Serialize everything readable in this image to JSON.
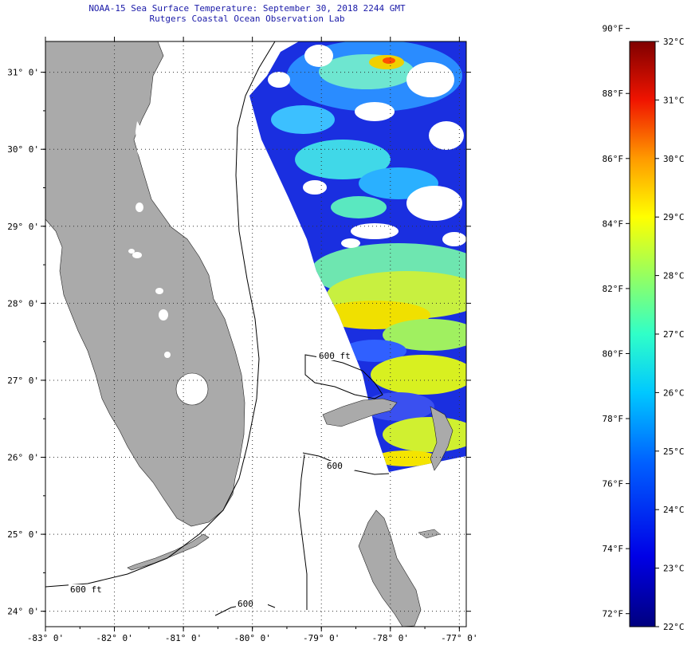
{
  "header": {
    "title_line1": "NOAA-15 Sea Surface Temperature:  September 30, 2018 2244 GMT",
    "title_line2": "Rutgers Coastal Ocean Observation Lab"
  },
  "map": {
    "lon_ticks": [
      {
        "label": "-83° 0'",
        "value": -83
      },
      {
        "label": "-82° 0'",
        "value": -82
      },
      {
        "label": "-81° 0'",
        "value": -81
      },
      {
        "label": "-80° 0'",
        "value": -80
      },
      {
        "label": "-79° 0'",
        "value": -79
      },
      {
        "label": "-78° 0'",
        "value": -78
      },
      {
        "label": "-77° 0'",
        "value": -77
      }
    ],
    "lat_ticks": [
      {
        "label": "31° 0'",
        "value": 31
      },
      {
        "label": "30° 0'",
        "value": 30
      },
      {
        "label": "29° 0'",
        "value": 29
      },
      {
        "label": "28° 0'",
        "value": 28
      },
      {
        "label": "27° 0'",
        "value": 27
      },
      {
        "label": "26° 0'",
        "value": 26
      },
      {
        "label": "25° 0'",
        "value": 25
      },
      {
        "label": "24° 0'",
        "value": 24
      }
    ],
    "lon_range": [
      -83,
      -76.9
    ],
    "lat_range": [
      23.8,
      31.4
    ],
    "contour_label": "600 ft",
    "contour_label_short": "600"
  },
  "colorbar": {
    "f_labels": [
      "90°F",
      "88°F",
      "86°F",
      "84°F",
      "82°F",
      "80°F",
      "78°F",
      "76°F",
      "74°F",
      "72°F"
    ],
    "c_labels": [
      "32°C",
      "31°C",
      "30°C",
      "29°C",
      "28°C",
      "27°C",
      "26°C",
      "25°C",
      "24°C",
      "23°C",
      "22°C"
    ],
    "range_c": [
      22,
      32
    ]
  },
  "colors": {
    "land": "#aaaaaa",
    "title": "#1a1aa8"
  }
}
